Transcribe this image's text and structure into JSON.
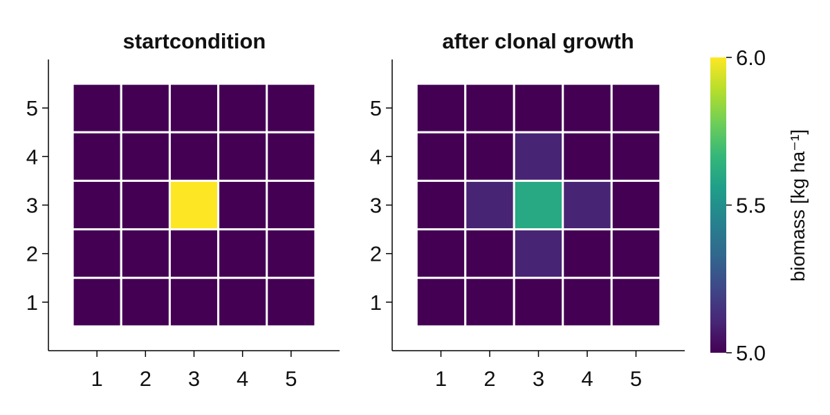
{
  "chart_data": [
    {
      "type": "heatmap",
      "title": "startcondition",
      "x_ticks": [
        "1",
        "2",
        "3",
        "4",
        "5"
      ],
      "y_ticks": [
        "1",
        "2",
        "3",
        "4",
        "5"
      ],
      "xlim": [
        0,
        6
      ],
      "ylim": [
        0,
        6
      ],
      "grid": false,
      "values": [
        [
          5.0,
          5.0,
          5.0,
          5.0,
          5.0
        ],
        [
          5.0,
          5.0,
          5.0,
          5.0,
          5.0
        ],
        [
          5.0,
          5.0,
          6.0,
          5.0,
          5.0
        ],
        [
          5.0,
          5.0,
          5.0,
          5.0,
          5.0
        ],
        [
          5.0,
          5.0,
          5.0,
          5.0,
          5.0
        ]
      ]
    },
    {
      "type": "heatmap",
      "title": "after clonal growth",
      "x_ticks": [
        "1",
        "2",
        "3",
        "4",
        "5"
      ],
      "y_ticks": [
        "1",
        "2",
        "3",
        "4",
        "5"
      ],
      "xlim": [
        0,
        6
      ],
      "ylim": [
        0,
        6
      ],
      "grid": false,
      "values": [
        [
          5.0,
          5.0,
          5.0,
          5.0,
          5.0
        ],
        [
          5.0,
          5.0,
          5.1,
          5.0,
          5.0
        ],
        [
          5.0,
          5.1,
          5.6,
          5.1,
          5.0
        ],
        [
          5.0,
          5.0,
          5.1,
          5.0,
          5.0
        ],
        [
          5.0,
          5.0,
          5.0,
          5.0,
          5.0
        ]
      ]
    }
  ],
  "colorbar": {
    "label": "biomass [kg ha⁻¹]",
    "range": [
      5.0,
      6.0
    ],
    "ticks": [
      "5.0",
      "5.5",
      "6.0"
    ],
    "colormap": "viridis",
    "colors": [
      "#440154",
      "#482878",
      "#3e4989",
      "#31688e",
      "#26828e",
      "#1f9e89",
      "#35b779",
      "#6ece58",
      "#b5de2b",
      "#fde725"
    ]
  },
  "colors": {
    "cell_border": "#ffffff",
    "axis": "#000000"
  }
}
